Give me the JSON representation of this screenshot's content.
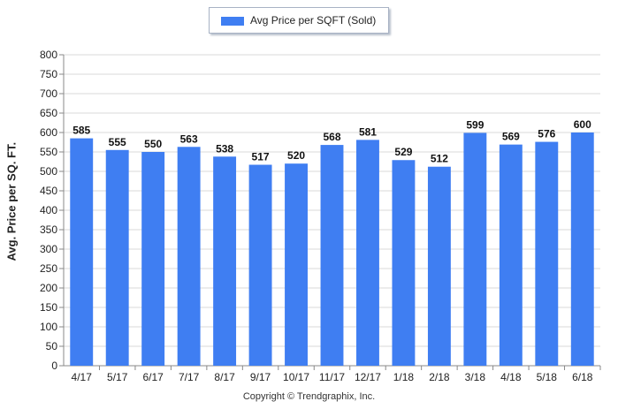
{
  "chart_data": {
    "type": "bar",
    "title": "",
    "xlabel": "",
    "ylabel": "Avg. Price per SQ. FT.",
    "ylim": [
      0,
      800
    ],
    "yticks": [
      0,
      50,
      100,
      150,
      200,
      250,
      300,
      350,
      400,
      450,
      500,
      550,
      600,
      650,
      700,
      750,
      800
    ],
    "grid": true,
    "legend_position": "top-center",
    "categories": [
      "4/17",
      "5/17",
      "6/17",
      "7/17",
      "8/17",
      "9/17",
      "10/17",
      "11/17",
      "12/17",
      "1/18",
      "2/18",
      "3/18",
      "4/18",
      "5/18",
      "6/18"
    ],
    "series": [
      {
        "name": "Avg Price per SQFT (Sold)",
        "color": "#3f7ef2",
        "values": [
          585,
          555,
          550,
          563,
          538,
          517,
          520,
          568,
          581,
          529,
          512,
          599,
          569,
          576,
          600
        ]
      }
    ]
  },
  "footer": {
    "copyright": "Copyright © Trendgraphix, Inc."
  }
}
